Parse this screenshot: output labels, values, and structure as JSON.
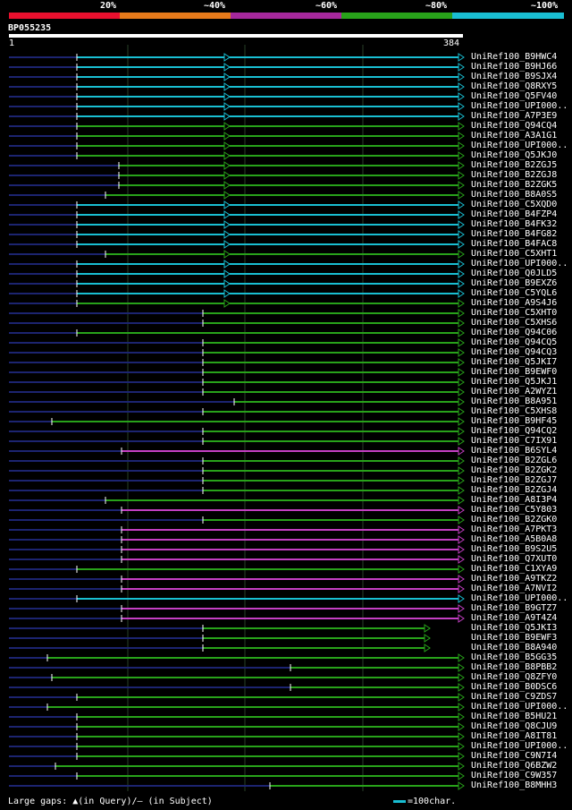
{
  "legend": {
    "labels": [
      "20%",
      "~40%",
      "~60%",
      "~80%",
      "~100%"
    ],
    "colors": [
      "#e8102e",
      "#e67a1a",
      "#a6289c",
      "#28a21a",
      "#19bed2"
    ]
  },
  "query": {
    "name": "BP055235",
    "start": "1",
    "end": "384"
  },
  "colors": {
    "cyan": "#19bed2",
    "green": "#28a21a",
    "magenta": "#c43fc3",
    "track": "#1c2470",
    "grid": "#274127"
  },
  "hits": [
    {
      "label": "UniRef100_B9HWC4",
      "color": "cyan"
    },
    {
      "label": "UniRef100_B9HJ66",
      "color": "cyan"
    },
    {
      "label": "UniRef100_B9SJX4",
      "color": "cyan"
    },
    {
      "label": "UniRef100_Q8RXY5",
      "color": "cyan"
    },
    {
      "label": "UniRef100_Q5FV40",
      "color": "cyan"
    },
    {
      "label": "UniRef100_UPI000..",
      "color": "cyan"
    },
    {
      "label": "UniRef100_A7P3E9",
      "color": "cyan"
    },
    {
      "label": "UniRef100_Q94CQ4",
      "color": "green"
    },
    {
      "label": "UniRef100_A3A1G1",
      "color": "green"
    },
    {
      "label": "UniRef100_UPI000..",
      "color": "green"
    },
    {
      "label": "UniRef100_Q5JKJ0",
      "color": "green"
    },
    {
      "label": "UniRef100_B2ZGJ5",
      "color": "green"
    },
    {
      "label": "UniRef100_B2ZGJ8",
      "color": "green"
    },
    {
      "label": "UniRef100_B2ZGK5",
      "color": "green"
    },
    {
      "label": "UniRef100_B8A0S5",
      "color": "green"
    },
    {
      "label": "UniRef100_C5XQD0",
      "color": "cyan"
    },
    {
      "label": "UniRef100_B4FZP4",
      "color": "cyan"
    },
    {
      "label": "UniRef100_B4FK32",
      "color": "cyan"
    },
    {
      "label": "UniRef100_B4FG82",
      "color": "cyan"
    },
    {
      "label": "UniRef100_B4FAC8",
      "color": "cyan"
    },
    {
      "label": "UniRef100_C5XHT1",
      "color": "green"
    },
    {
      "label": "UniRef100_UPI000..",
      "color": "cyan"
    },
    {
      "label": "UniRef100_Q0JLD5",
      "color": "cyan"
    },
    {
      "label": "UniRef100_B9EXZ6",
      "color": "cyan"
    },
    {
      "label": "UniRef100_C5YQL6",
      "color": "cyan"
    },
    {
      "label": "UniRef100_A9S4J6",
      "color": "green"
    },
    {
      "label": "UniRef100_C5XHT0",
      "color": "green"
    },
    {
      "label": "UniRef100_C5XHS6",
      "color": "green"
    },
    {
      "label": "UniRef100_Q94C06",
      "color": "green"
    },
    {
      "label": "UniRef100_Q94CQ5",
      "color": "green"
    },
    {
      "label": "UniRef100_Q94CQ3",
      "color": "green"
    },
    {
      "label": "UniRef100_Q5JKI7",
      "color": "green"
    },
    {
      "label": "UniRef100_B9EWF0",
      "color": "green"
    },
    {
      "label": "UniRef100_Q5JKJ1",
      "color": "green"
    },
    {
      "label": "UniRef100_A2WYZ1",
      "color": "green"
    },
    {
      "label": "UniRef100_B8A951",
      "color": "green"
    },
    {
      "label": "UniRef100_C5XHS8",
      "color": "green"
    },
    {
      "label": "UniRef100_B9HF45",
      "color": "green"
    },
    {
      "label": "UniRef100_Q94CQ2",
      "color": "green"
    },
    {
      "label": "UniRef100_C7IX91",
      "color": "green"
    },
    {
      "label": "UniRef100_B6SYL4",
      "color": "magenta"
    },
    {
      "label": "UniRef100_B2ZGL6",
      "color": "green"
    },
    {
      "label": "UniRef100_B2ZGK2",
      "color": "green"
    },
    {
      "label": "UniRef100_B2ZGJ7",
      "color": "green"
    },
    {
      "label": "UniRef100_B2ZGJ4",
      "color": "green"
    },
    {
      "label": "UniRef100_A8I3P4",
      "color": "green"
    },
    {
      "label": "UniRef100_C5Y803",
      "color": "magenta"
    },
    {
      "label": "UniRef100_B2ZGK0",
      "color": "green"
    },
    {
      "label": "UniRef100_A7PKT3",
      "color": "magenta"
    },
    {
      "label": "UniRef100_A5B0A8",
      "color": "magenta"
    },
    {
      "label": "UniRef100_B9S2U5",
      "color": "magenta"
    },
    {
      "label": "UniRef100_Q7XUT0",
      "color": "magenta"
    },
    {
      "label": "UniRef100_C1XYA9",
      "color": "green"
    },
    {
      "label": "UniRef100_A9TKZ2",
      "color": "magenta"
    },
    {
      "label": "UniRef100_A7NVI2",
      "color": "magenta"
    },
    {
      "label": "UniRef100_UPI000..",
      "color": "cyan"
    },
    {
      "label": "UniRef100_B9GTZ7",
      "color": "magenta"
    },
    {
      "label": "UniRef100_A9T4Z4",
      "color": "magenta"
    },
    {
      "label": "UniRef100_Q5JKI3",
      "color": "green"
    },
    {
      "label": "UniRef100_B9EWF3",
      "color": "green"
    },
    {
      "label": "UniRef100_B8A940",
      "color": "green"
    },
    {
      "label": "UniRef100_B5GG35",
      "color": "green"
    },
    {
      "label": "UniRef100_B8PBB2",
      "color": "green"
    },
    {
      "label": "UniRef100_Q8ZFY0",
      "color": "green"
    },
    {
      "label": "UniRef100_B0DSC6",
      "color": "green"
    },
    {
      "label": "UniRef100_C9ZDS7",
      "color": "green"
    },
    {
      "label": "UniRef100_UPI000..",
      "color": "green"
    },
    {
      "label": "UniRef100_B5HU21",
      "color": "green"
    },
    {
      "label": "UniRef100_Q8CJU9",
      "color": "green"
    },
    {
      "label": "UniRef100_A8IT81",
      "color": "green"
    },
    {
      "label": "UniRef100_UPI000..",
      "color": "green"
    },
    {
      "label": "UniRef100_C9N7I4",
      "color": "green"
    },
    {
      "label": "UniRef100_Q6BZW2",
      "color": "green"
    },
    {
      "label": "UniRef100_C9W357",
      "color": "green"
    },
    {
      "label": "UniRef100_B8MHH3",
      "color": "green"
    }
  ],
  "footer": {
    "text": "Large gaps: ▲(in Query)/– (in Subject)",
    "scale_text": "=100char."
  }
}
